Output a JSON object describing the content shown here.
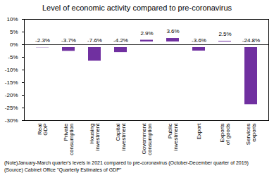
{
  "chart_data": {
    "type": "bar",
    "title": "Level of economic activity compared to pre-coronavirus",
    "categories": [
      "Real GDP",
      "Private consumption",
      "Housing investment",
      "Capital investment",
      "Government consumption",
      "Public investment",
      "Export",
      "Exports of goods",
      "Services exports"
    ],
    "values": [
      -2.3,
      -3.7,
      -7.6,
      -4.2,
      2.9,
      3.6,
      -3.6,
      2.5,
      -24.8
    ],
    "value_labels": [
      "-2.3%",
      "-3.7%",
      "-7.6%",
      "-4.2%",
      "2.9%",
      "3.6%",
      "-3.6%",
      "2.5%",
      "-24.8%"
    ],
    "color": "#7030a0",
    "ylim": [
      -30,
      10
    ],
    "yticks": [
      {
        "value": 10,
        "label": "10%"
      },
      {
        "value": 5,
        "label": "5%"
      },
      {
        "value": 0,
        "label": "0%"
      },
      {
        "value": -5,
        "label": "-5%"
      },
      {
        "value": -10,
        "label": "-10%"
      },
      {
        "value": -15,
        "label": "-15%"
      },
      {
        "value": -20,
        "label": "-20%"
      },
      {
        "value": -25,
        "label": "-25%"
      },
      {
        "value": -30,
        "label": "-30%"
      }
    ],
    "grid": false,
    "data_labels": true,
    "annotations": [
      "(Note)January-March quarter's levels in 2021 compared to pre-coronavirus (October-December quarter of 2019)",
      "(Source) Cabinet Office \"Quarterly Estimates of GDP\""
    ]
  }
}
